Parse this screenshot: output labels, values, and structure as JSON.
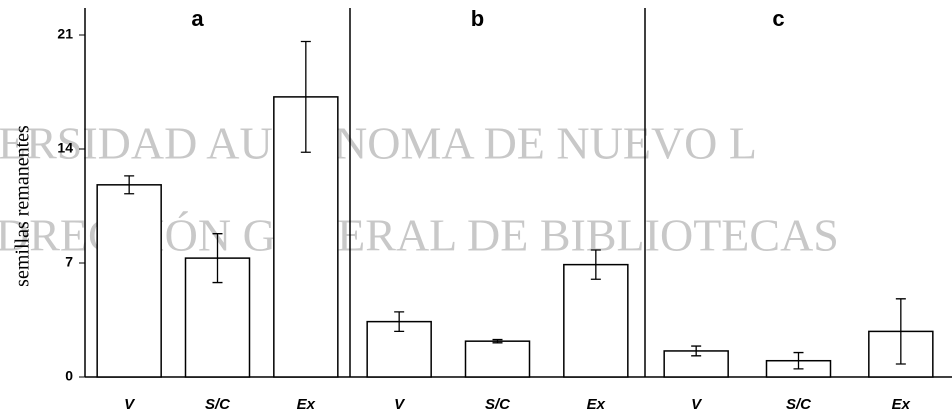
{
  "watermark": [
    "ERSIDAD AUTÓNOMA DE NUEVO L",
    "DRECCIÓN GENERAL DE BIBLIOTECAS"
  ],
  "y_label": "semillas remanentes",
  "chart_data": [
    {
      "type": "bar",
      "title": "a",
      "categories": [
        "V",
        "S/C",
        "Ex"
      ],
      "values": [
        11.8,
        7.3,
        17.2
      ],
      "errors": [
        0.55,
        1.5,
        3.4
      ],
      "ylim": [
        0,
        21
      ],
      "yticks": [
        0,
        7,
        14,
        21
      ],
      "color": "#ffffff"
    },
    {
      "type": "bar",
      "title": "b",
      "categories": [
        "V",
        "S/C",
        "Ex"
      ],
      "values": [
        3.4,
        2.2,
        6.9
      ],
      "errors": [
        0.6,
        0.1,
        0.9
      ],
      "ylim": [
        0,
        21
      ],
      "color": "#ffffff"
    },
    {
      "type": "bar",
      "title": "c",
      "categories": [
        "V",
        "S/C",
        "Ex"
      ],
      "values": [
        1.6,
        1.0,
        2.8
      ],
      "errors": [
        0.3,
        0.5,
        2.0
      ],
      "ylim": [
        0,
        21
      ],
      "color": "#ffffff"
    }
  ]
}
